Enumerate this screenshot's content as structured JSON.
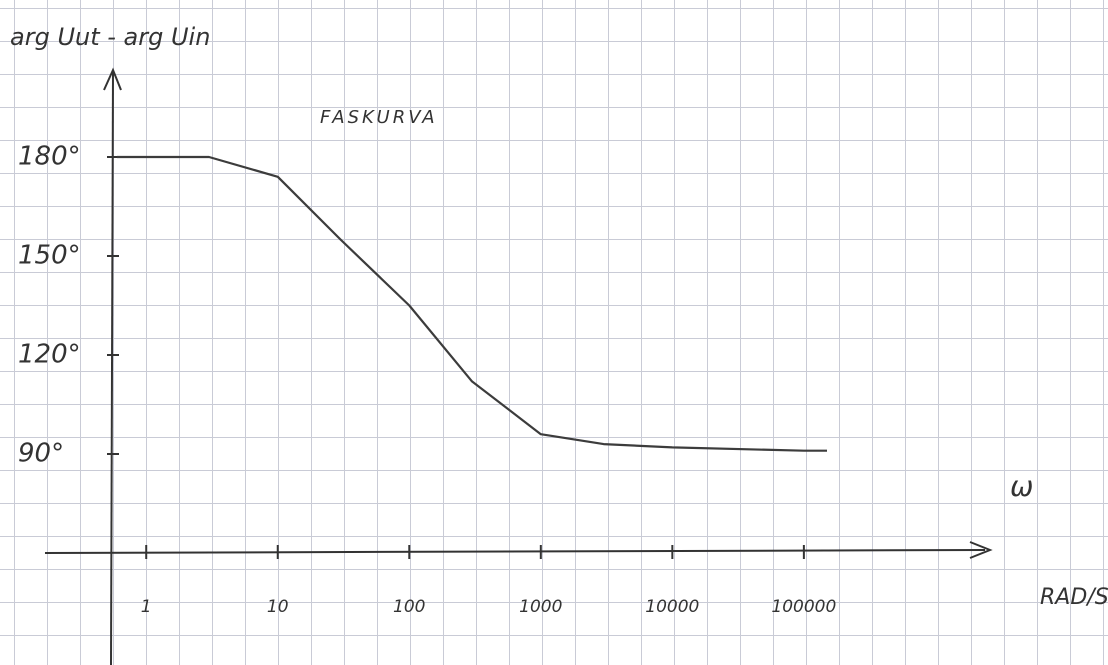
{
  "chart_data": {
    "type": "line",
    "title": "FASKURVA",
    "y_label": "arg Uut - arg Uin",
    "x_label": "ω",
    "x_unit": "RAD/S",
    "log_x": true,
    "x": [
      0.6,
      1,
      3,
      10,
      30,
      100,
      300,
      1000,
      3000,
      10000,
      100000,
      150000
    ],
    "series": [
      {
        "color": "#3c3c3c",
        "values": [
          180,
          180,
          180,
          174,
          155,
          135,
          112,
          96,
          93,
          92,
          91,
          91
        ]
      }
    ],
    "xlim": [
      0.17,
      2000000
    ],
    "xticks": [
      1,
      10,
      100,
      1000,
      10000,
      100000
    ],
    "ylim": [
      60,
      200
    ],
    "yticks": [
      {
        "value": 90,
        "label": "90°"
      },
      {
        "value": 120,
        "label": "120°"
      },
      {
        "value": 150,
        "label": "150°"
      },
      {
        "value": 180,
        "label": "180°"
      }
    ]
  }
}
